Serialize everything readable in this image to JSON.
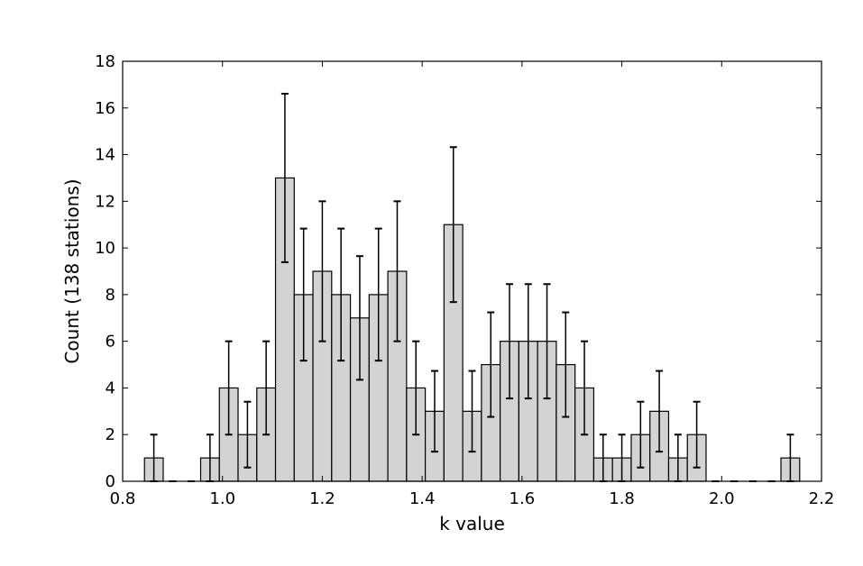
{
  "chart_data": {
    "type": "bar",
    "xlabel": "k value",
    "ylabel": "Count (138 stations)",
    "xlim": [
      0.8,
      2.2
    ],
    "ylim": [
      0,
      18
    ],
    "xticks": [
      "0.8",
      "1.0",
      "1.2",
      "1.4",
      "1.6",
      "1.8",
      "2.0",
      "2.2"
    ],
    "yticks": [
      "0",
      "2",
      "4",
      "6",
      "8",
      "10",
      "12",
      "14",
      "16",
      "18"
    ],
    "bin_width": 0.0375,
    "bar_color": "#d3d3d3",
    "edge_color": "#000000",
    "grid": false,
    "bins": [
      {
        "x": 0.8625,
        "count": 1,
        "err": 1
      },
      {
        "x": 0.9,
        "count": 0,
        "err": 0
      },
      {
        "x": 0.9375,
        "count": 0,
        "err": 0
      },
      {
        "x": 0.975,
        "count": 1,
        "err": 1
      },
      {
        "x": 1.0125,
        "count": 4,
        "err": 2
      },
      {
        "x": 1.05,
        "count": 2,
        "err": 1.41
      },
      {
        "x": 1.0875,
        "count": 4,
        "err": 2
      },
      {
        "x": 1.125,
        "count": 13,
        "err": 3.61
      },
      {
        "x": 1.1625,
        "count": 8,
        "err": 2.83
      },
      {
        "x": 1.2,
        "count": 9,
        "err": 3
      },
      {
        "x": 1.2375,
        "count": 8,
        "err": 2.83
      },
      {
        "x": 1.275,
        "count": 7,
        "err": 2.65
      },
      {
        "x": 1.3125,
        "count": 8,
        "err": 2.83
      },
      {
        "x": 1.35,
        "count": 9,
        "err": 3
      },
      {
        "x": 1.3875,
        "count": 4,
        "err": 2
      },
      {
        "x": 1.425,
        "count": 3,
        "err": 1.73
      },
      {
        "x": 1.4625,
        "count": 11,
        "err": 3.32
      },
      {
        "x": 1.5,
        "count": 3,
        "err": 1.73
      },
      {
        "x": 1.5375,
        "count": 5,
        "err": 2.24
      },
      {
        "x": 1.575,
        "count": 6,
        "err": 2.45
      },
      {
        "x": 1.6125,
        "count": 6,
        "err": 2.45
      },
      {
        "x": 1.65,
        "count": 6,
        "err": 2.45
      },
      {
        "x": 1.6875,
        "count": 5,
        "err": 2.24
      },
      {
        "x": 1.725,
        "count": 4,
        "err": 2
      },
      {
        "x": 1.7625,
        "count": 1,
        "err": 1
      },
      {
        "x": 1.8,
        "count": 1,
        "err": 1
      },
      {
        "x": 1.8375,
        "count": 2,
        "err": 1.41
      },
      {
        "x": 1.875,
        "count": 3,
        "err": 1.73
      },
      {
        "x": 1.9125,
        "count": 1,
        "err": 1
      },
      {
        "x": 1.95,
        "count": 2,
        "err": 1.41
      },
      {
        "x": 1.9875,
        "count": 0,
        "err": 0
      },
      {
        "x": 2.025,
        "count": 0,
        "err": 0
      },
      {
        "x": 2.0625,
        "count": 0,
        "err": 0
      },
      {
        "x": 2.1,
        "count": 0,
        "err": 0
      },
      {
        "x": 2.1375,
        "count": 1,
        "err": 1
      }
    ]
  }
}
